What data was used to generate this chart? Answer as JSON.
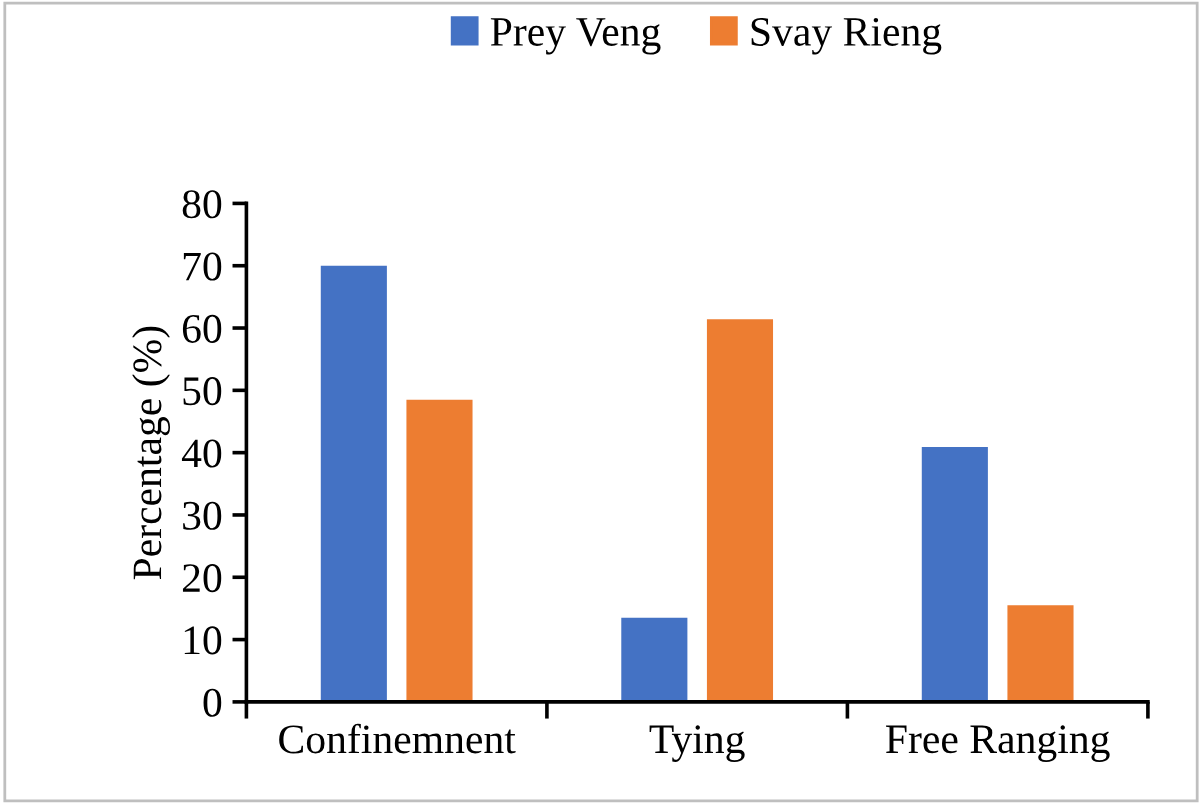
{
  "chart_data": {
    "type": "bar",
    "ylabel": "Percentage (%)",
    "categories": [
      "Confinemnent",
      "Tying",
      "Free Ranging"
    ],
    "series": [
      {
        "name": "Prey Veng",
        "color": "#4472c4",
        "values": [
          70,
          13.5,
          40.9
        ]
      },
      {
        "name": "Svay Rieng",
        "color": "#ed7d31",
        "values": [
          48.5,
          61.4,
          15.5
        ]
      }
    ],
    "ylim": [
      0,
      80
    ],
    "yticks": [
      0,
      10,
      20,
      30,
      40,
      50,
      60,
      70,
      80
    ],
    "grid": false,
    "legend": "top"
  }
}
